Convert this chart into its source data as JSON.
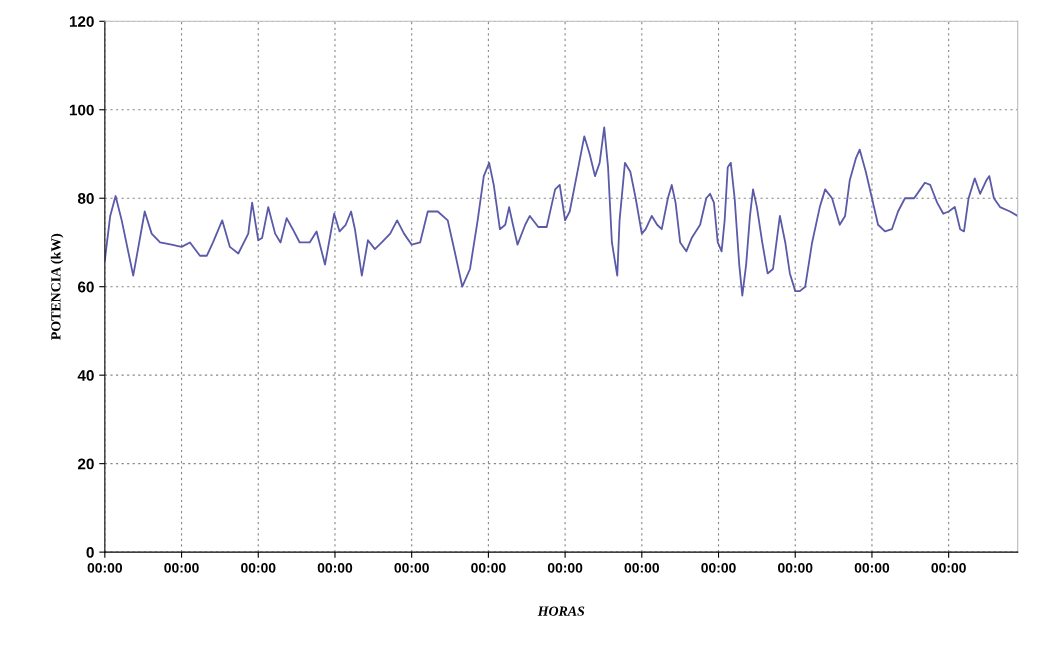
{
  "chart_data": {
    "type": "line",
    "xlabel": "HORAS",
    "ylabel": "POTENCIA (kW)",
    "xlim": [
      0,
      11.9
    ],
    "xticks": [
      {
        "value": 0,
        "label": "00:00"
      },
      {
        "value": 1,
        "label": "00:00"
      },
      {
        "value": 2,
        "label": "00:00"
      },
      {
        "value": 3,
        "label": "00:00"
      },
      {
        "value": 4,
        "label": "00:00"
      },
      {
        "value": 5,
        "label": "00:00"
      },
      {
        "value": 6,
        "label": "00:00"
      },
      {
        "value": 7,
        "label": "00:00"
      },
      {
        "value": 8,
        "label": "00:00"
      },
      {
        "value": 9,
        "label": "00:00"
      },
      {
        "value": 10,
        "label": "00:00"
      },
      {
        "value": 11,
        "label": "00:00"
      }
    ],
    "ylim": [
      0,
      120
    ],
    "yticks": [
      0,
      20,
      40,
      60,
      80,
      100,
      120
    ],
    "grid": true,
    "marker": "none",
    "line_style": "solid",
    "series": [
      {
        "color": "#5a5aa8",
        "x": [
          0,
          0.07,
          0.14,
          0.22,
          0.37,
          0.52,
          0.61,
          0.72,
          0.87,
          1.0,
          1.11,
          1.24,
          1.33,
          1.41,
          1.53,
          1.63,
          1.74,
          1.87,
          1.92,
          2.0,
          2.05,
          2.13,
          2.22,
          2.29,
          2.37,
          2.45,
          2.54,
          2.67,
          2.76,
          2.87,
          2.99,
          3.06,
          3.14,
          3.21,
          3.26,
          3.35,
          3.43,
          3.52,
          3.61,
          3.72,
          3.81,
          3.9,
          4.0,
          4.11,
          4.21,
          4.34,
          4.47,
          4.56,
          4.66,
          4.76,
          4.86,
          4.94,
          5.01,
          5.07,
          5.15,
          5.22,
          5.27,
          5.32,
          5.38,
          5.48,
          5.54,
          5.65,
          5.76,
          5.87,
          5.93,
          6.0,
          6.06,
          6.15,
          6.25,
          6.32,
          6.39,
          6.45,
          6.51,
          6.56,
          6.61,
          6.68,
          6.71,
          6.78,
          6.85,
          6.92,
          7.0,
          7.05,
          7.13,
          7.2,
          7.26,
          7.34,
          7.39,
          7.44,
          7.5,
          7.58,
          7.65,
          7.76,
          7.84,
          7.89,
          7.94,
          7.99,
          8.04,
          8.08,
          8.12,
          8.16,
          8.21,
          8.27,
          8.31,
          8.36,
          8.41,
          8.45,
          8.5,
          8.57,
          8.64,
          8.71,
          8.77,
          8.8,
          8.87,
          8.93,
          9.0,
          9.06,
          9.13,
          9.22,
          9.32,
          9.39,
          9.48,
          9.53,
          9.58,
          9.65,
          9.71,
          9.79,
          9.84,
          9.92,
          10.0,
          10.08,
          10.17,
          10.26,
          10.34,
          10.43,
          10.55,
          10.63,
          10.69,
          10.76,
          10.85,
          10.93,
          11.0,
          11.08,
          11.15,
          11.2,
          11.26,
          11.34,
          11.41,
          11.49,
          11.53,
          11.59,
          11.67,
          11.8,
          11.9
        ],
        "values": [
          66,
          76,
          80.5,
          75,
          62.5,
          77,
          72,
          70,
          69.5,
          69,
          70,
          67,
          67,
          70,
          75,
          69,
          67.5,
          72,
          79,
          70.5,
          71,
          78,
          72,
          70,
          75.5,
          73,
          70,
          70,
          72.5,
          65,
          76.5,
          72.5,
          74,
          77,
          73,
          62.5,
          70.5,
          68.5,
          70,
          72,
          75,
          72,
          69.5,
          70,
          77,
          77,
          75,
          68,
          60,
          64,
          75,
          85,
          88,
          83,
          73,
          74,
          78,
          74,
          69.5,
          74,
          76,
          73.5,
          73.5,
          82,
          83,
          75,
          77,
          85,
          94,
          90,
          85,
          88,
          96,
          87,
          70,
          62.5,
          75,
          88,
          86,
          80,
          72,
          73,
          76,
          74,
          73,
          80,
          83,
          79,
          70,
          68,
          71,
          74,
          80,
          81,
          79,
          70,
          68,
          75,
          87,
          88,
          80,
          65,
          58,
          65,
          76,
          82,
          78,
          70,
          63,
          64,
          72,
          76,
          70,
          63,
          59,
          59,
          60,
          70,
          78,
          82,
          80,
          77,
          74,
          76,
          84,
          89,
          91,
          86,
          80,
          74,
          72.5,
          73,
          77,
          80,
          80,
          82,
          83.5,
          83,
          79,
          76.5,
          77,
          78,
          73,
          72.5,
          80,
          84.5,
          81,
          84,
          85,
          80,
          78,
          77,
          76
        ]
      }
    ]
  }
}
